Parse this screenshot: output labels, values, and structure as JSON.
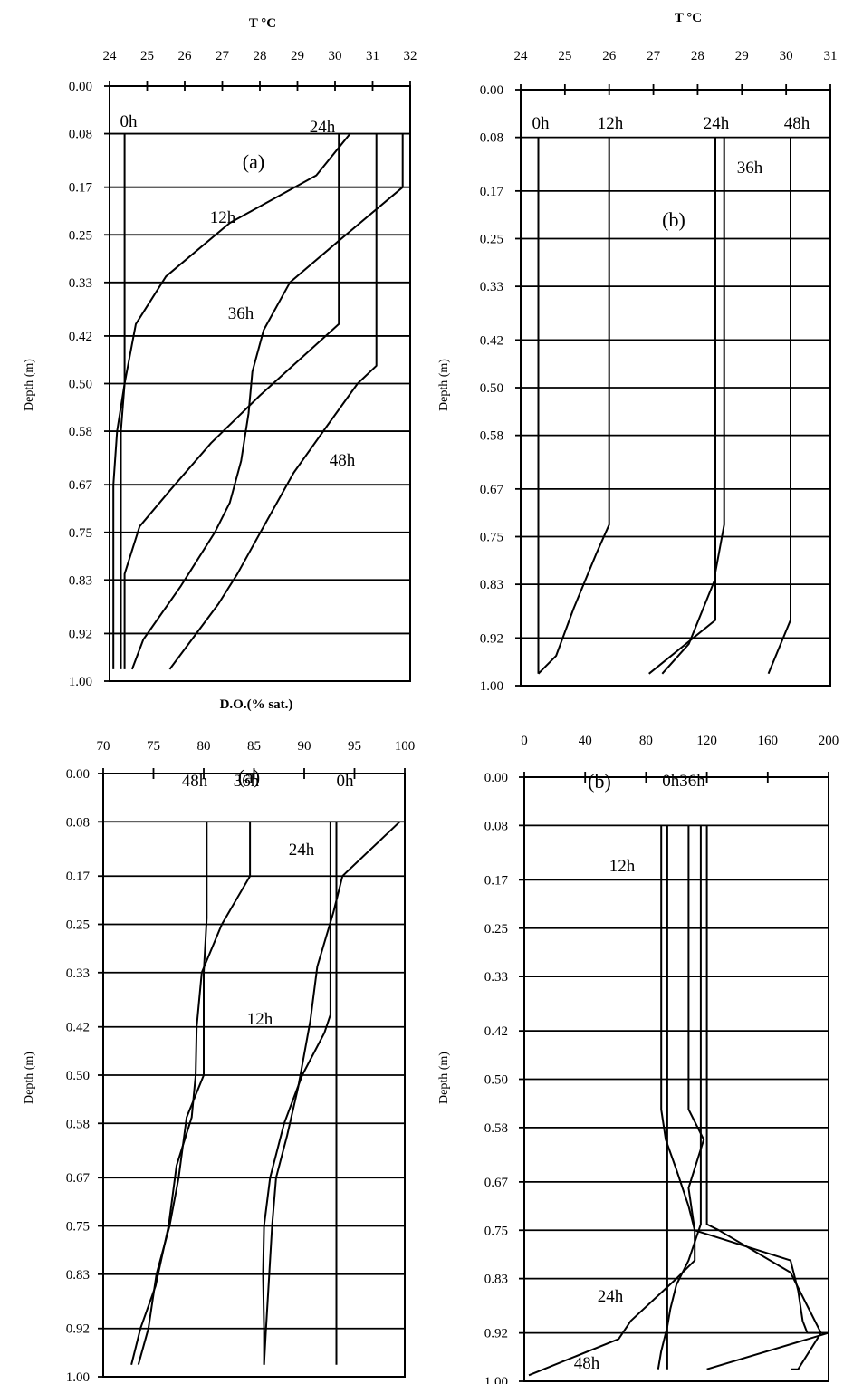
{
  "chart_data": [
    {
      "id": "temperature-a",
      "type": "line",
      "title": "T °C",
      "ylabel": "Depth (m)",
      "panel_label": "(a)",
      "xlim": [
        24,
        32
      ],
      "x_ticks": [
        "24",
        "25",
        "26",
        "27",
        "28",
        "29",
        "30",
        "31",
        "32"
      ],
      "ylim": [
        0,
        1.0
      ],
      "y_ticks": [
        "0.00",
        "0.08",
        "0.17",
        "0.25",
        "0.33",
        "0.42",
        "0.50",
        "0.58",
        "0.67",
        "0.75",
        "0.83",
        "0.92",
        "1.00"
      ],
      "grid": "horizontal",
      "series": [
        {
          "name": "0h",
          "points": [
            [
              24.4,
              0.08
            ],
            [
              24.4,
              0.5
            ],
            [
              24.2,
              0.58
            ],
            [
              24.1,
              0.67
            ],
            [
              24.1,
              0.75
            ],
            [
              24.1,
              0.83
            ],
            [
              24.1,
              0.92
            ],
            [
              24.1,
              0.98
            ]
          ]
        },
        {
          "name": "12h",
          "points": [
            [
              30.4,
              0.08
            ],
            [
              29.5,
              0.15
            ],
            [
              27.2,
              0.23
            ],
            [
              25.5,
              0.32
            ],
            [
              24.7,
              0.4
            ],
            [
              24.4,
              0.5
            ],
            [
              24.3,
              0.58
            ],
            [
              24.3,
              0.67
            ],
            [
              24.3,
              0.75
            ],
            [
              24.3,
              0.83
            ],
            [
              24.3,
              0.92
            ],
            [
              24.3,
              0.98
            ]
          ]
        },
        {
          "name": "24h",
          "points": [
            [
              30.1,
              0.08
            ],
            [
              30.1,
              0.4
            ],
            [
              28.0,
              0.52
            ],
            [
              26.7,
              0.6
            ],
            [
              25.6,
              0.68
            ],
            [
              24.8,
              0.74
            ],
            [
              24.4,
              0.82
            ],
            [
              24.4,
              0.92
            ],
            [
              24.4,
              0.98
            ]
          ]
        },
        {
          "name": "36h",
          "points": [
            [
              31.8,
              0.08
            ],
            [
              31.8,
              0.17
            ],
            [
              30.1,
              0.26
            ],
            [
              28.8,
              0.33
            ],
            [
              28.1,
              0.41
            ],
            [
              27.8,
              0.48
            ],
            [
              27.7,
              0.55
            ],
            [
              27.5,
              0.63
            ],
            [
              27.2,
              0.7
            ],
            [
              26.8,
              0.75
            ],
            [
              25.9,
              0.84
            ],
            [
              24.9,
              0.93
            ],
            [
              24.6,
              0.98
            ]
          ]
        },
        {
          "name": "48h",
          "points": [
            [
              31.1,
              0.08
            ],
            [
              31.1,
              0.47
            ],
            [
              30.6,
              0.5
            ],
            [
              29.8,
              0.57
            ],
            [
              28.9,
              0.65
            ],
            [
              28.1,
              0.74
            ],
            [
              27.4,
              0.82
            ],
            [
              26.9,
              0.87
            ],
            [
              25.6,
              0.98
            ]
          ]
        }
      ],
      "curve_labels": [
        "0h",
        "24h",
        "12h",
        "36h",
        "48h"
      ]
    },
    {
      "id": "temperature-b",
      "type": "line",
      "title": "T °C",
      "ylabel": "Depth (m)",
      "panel_label": "(b)",
      "xlim": [
        24,
        31
      ],
      "x_ticks": [
        "24",
        "25",
        "26",
        "27",
        "28",
        "29",
        "30",
        "31"
      ],
      "ylim": [
        0,
        1.0
      ],
      "y_ticks": [
        "0.00",
        "0.08",
        "0.17",
        "0.25",
        "0.33",
        "0.42",
        "0.50",
        "0.58",
        "0.67",
        "0.75",
        "0.83",
        "0.92",
        "1.00"
      ],
      "grid": "horizontal",
      "series": [
        {
          "name": "0h",
          "points": [
            [
              24.4,
              0.08
            ],
            [
              24.4,
              0.98
            ]
          ]
        },
        {
          "name": "12h",
          "points": [
            [
              26.0,
              0.08
            ],
            [
              26.0,
              0.73
            ],
            [
              25.7,
              0.78
            ],
            [
              25.2,
              0.87
            ],
            [
              24.8,
              0.95
            ],
            [
              24.4,
              0.98
            ]
          ]
        },
        {
          "name": "24h",
          "points": [
            [
              28.4,
              0.08
            ],
            [
              28.4,
              0.82
            ],
            [
              27.8,
              0.93
            ],
            [
              27.2,
              0.98
            ]
          ]
        },
        {
          "name": "36h",
          "points": [
            [
              28.6,
              0.08
            ],
            [
              28.6,
              0.73
            ],
            [
              28.4,
              0.81
            ],
            [
              28.4,
              0.89
            ],
            [
              26.9,
              0.98
            ]
          ]
        },
        {
          "name": "48h",
          "points": [
            [
              30.1,
              0.08
            ],
            [
              30.1,
              0.89
            ],
            [
              29.6,
              0.98
            ]
          ]
        }
      ],
      "curve_labels": [
        "0h",
        "12h",
        "24h",
        "48h",
        "36h"
      ]
    },
    {
      "id": "do-a",
      "type": "line",
      "title": "D.O.(% sat.)",
      "ylabel": "Depth (m)",
      "panel_label": "(a)",
      "xlim": [
        70,
        100
      ],
      "x_ticks": [
        "70",
        "75",
        "80",
        "85",
        "90",
        "95",
        "100"
      ],
      "ylim": [
        0,
        1.0
      ],
      "y_ticks": [
        "0.00",
        "0.08",
        "0.17",
        "0.25",
        "0.33",
        "0.42",
        "0.50",
        "0.58",
        "0.67",
        "0.75",
        "0.83",
        "0.92",
        "1.00"
      ],
      "grid": "horizontal",
      "series": [
        {
          "name": "0h",
          "points": [
            [
              93.2,
              0.08
            ],
            [
              93.2,
              0.98
            ]
          ]
        },
        {
          "name": "12h",
          "points": [
            [
              99.5,
              0.08
            ],
            [
              93.8,
              0.17
            ],
            [
              92.9,
              0.23
            ],
            [
              91.3,
              0.32
            ],
            [
              90.6,
              0.41
            ],
            [
              89.4,
              0.52
            ],
            [
              88.3,
              0.6
            ],
            [
              87.2,
              0.67
            ],
            [
              86.8,
              0.75
            ],
            [
              86.2,
              0.92
            ],
            [
              86.0,
              0.98
            ]
          ]
        },
        {
          "name": "24h",
          "points": [
            [
              92.6,
              0.08
            ],
            [
              92.6,
              0.4
            ],
            [
              92.0,
              0.43
            ],
            [
              89.8,
              0.5
            ],
            [
              88.0,
              0.58
            ],
            [
              86.6,
              0.67
            ],
            [
              86.0,
              0.75
            ],
            [
              85.9,
              0.83
            ],
            [
              86.0,
              0.92
            ],
            [
              86.0,
              0.98
            ]
          ]
        },
        {
          "name": "36h",
          "points": [
            [
              84.6,
              0.08
            ],
            [
              84.6,
              0.17
            ],
            [
              81.8,
              0.25
            ],
            [
              79.8,
              0.33
            ],
            [
              79.3,
              0.42
            ],
            [
              79.2,
              0.5
            ],
            [
              78.8,
              0.57
            ],
            [
              77.3,
              0.65
            ],
            [
              76.5,
              0.75
            ],
            [
              75.2,
              0.85
            ],
            [
              73.7,
              0.92
            ],
            [
              72.8,
              0.98
            ]
          ]
        },
        {
          "name": "48h",
          "points": [
            [
              80.3,
              0.08
            ],
            [
              80.3,
              0.24
            ],
            [
              80.0,
              0.33
            ],
            [
              80.0,
              0.5
            ],
            [
              78.3,
              0.57
            ],
            [
              77.5,
              0.67
            ],
            [
              76.6,
              0.75
            ],
            [
              75.3,
              0.83
            ],
            [
              74.5,
              0.92
            ],
            [
              73.5,
              0.98
            ]
          ]
        }
      ],
      "curve_labels": [
        "48h",
        "36h",
        "0h",
        "24h",
        "12h"
      ]
    },
    {
      "id": "do-b",
      "type": "line",
      "title": "",
      "ylabel": "Depth (m)",
      "panel_label": "(b)",
      "xlim": [
        0,
        200
      ],
      "x_ticks": [
        "0",
        "40",
        "80",
        "120",
        "160",
        "200"
      ],
      "ylim": [
        0,
        1.0
      ],
      "y_ticks": [
        "0.00",
        "0.08",
        "0.17",
        "0.25",
        "0.33",
        "0.42",
        "0.50",
        "0.58",
        "0.67",
        "0.75",
        "0.83",
        "0.92",
        "1.00"
      ],
      "grid": "horizontal",
      "series": [
        {
          "name": "0h",
          "points": [
            [
              94,
              0.08
            ],
            [
              94,
              0.98
            ]
          ]
        },
        {
          "name": "12h",
          "points": [
            [
              90,
              0.08
            ],
            [
              90,
              0.55
            ],
            [
              93,
              0.6
            ],
            [
              100,
              0.65
            ],
            [
              108,
              0.71
            ],
            [
              112,
              0.75
            ],
            [
              175,
              0.8
            ],
            [
              180,
              0.85
            ],
            [
              183,
              0.9
            ],
            [
              186,
              0.92
            ],
            [
              200,
              0.92
            ],
            [
              120,
              0.98
            ]
          ]
        },
        {
          "name": "24h",
          "points": [
            [
              116,
              0.08
            ],
            [
              116,
              0.74
            ],
            [
              108,
              0.8
            ],
            [
              100,
              0.84
            ],
            [
              96,
              0.88
            ],
            [
              94,
              0.91
            ],
            [
              90,
              0.95
            ],
            [
              88,
              0.98
            ]
          ]
        },
        {
          "name": "36h",
          "points": [
            [
              120,
              0.08
            ],
            [
              120,
              0.74
            ],
            [
              128,
              0.75
            ],
            [
              175,
              0.82
            ],
            [
              183,
              0.86
            ],
            [
              195,
              0.92
            ],
            [
              180,
              0.98
            ],
            [
              175,
              0.98
            ]
          ]
        },
        {
          "name": "48h",
          "points": [
            [
              108,
              0.08
            ],
            [
              108,
              0.55
            ],
            [
              118,
              0.6
            ],
            [
              108,
              0.68
            ],
            [
              112,
              0.75
            ],
            [
              112,
              0.8
            ],
            [
              100,
              0.83
            ],
            [
              70,
              0.9
            ],
            [
              62,
              0.93
            ],
            [
              3,
              0.99
            ]
          ]
        }
      ],
      "curve_labels": [
        "0h36h",
        "12h",
        "24h",
        "48h"
      ]
    }
  ]
}
